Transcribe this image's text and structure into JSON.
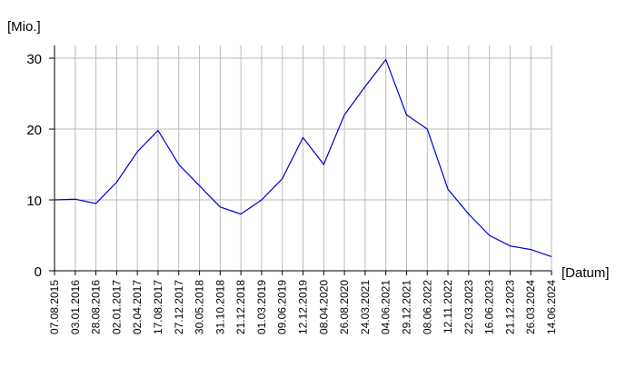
{
  "chart_data": {
    "type": "line",
    "y_unit": "[Mio.]",
    "x_unit": "[Datum]",
    "categories": [
      "07.08.2015",
      "03.01.2016",
      "28.08.2016",
      "02.01.2017",
      "02.04.2017",
      "17.08.2017",
      "27.12.2017",
      "30.05.2018",
      "31.10.2018",
      "21.12.2018",
      "01.03.2019",
      "09.06.2019",
      "12.12.2019",
      "08.04.2020",
      "26.08.2020",
      "24.03.2021",
      "04.06.2021",
      "29.12.2021",
      "08.06.2022",
      "12.11.2022",
      "22.03.2023",
      "16.06.2023",
      "21.12.2023",
      "26.03.2024",
      "14.06.2024"
    ],
    "values": [
      10,
      10.1,
      9.5,
      12.5,
      16.8,
      19.8,
      15,
      12,
      9,
      8,
      10,
      13,
      18.8,
      15,
      22,
      26,
      29.8,
      22,
      20,
      11.5,
      8,
      5,
      3.5,
      3,
      2
    ],
    "color": "#0000cc",
    "ylim": [
      0,
      31.8
    ],
    "yticks": [
      0,
      10,
      20,
      30
    ],
    "grid": true
  }
}
